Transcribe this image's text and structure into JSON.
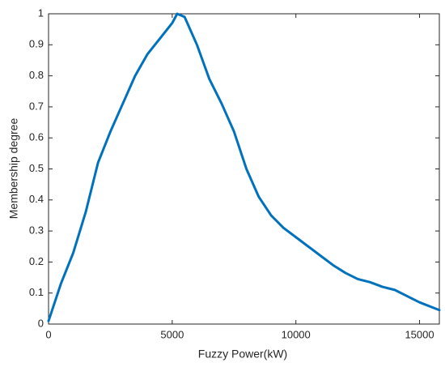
{
  "chart_data": {
    "type": "line",
    "x_label": "Fuzzy Power(kW)",
    "y_label": "Membership degree",
    "x": [
      0,
      500,
      1000,
      1500,
      2000,
      2500,
      3000,
      3500,
      4000,
      4500,
      5000,
      5200,
      5500,
      6000,
      6500,
      7000,
      7500,
      8000,
      8500,
      9000,
      9500,
      10000,
      10500,
      11000,
      11500,
      12000,
      12500,
      13000,
      13500,
      14000,
      14500,
      15000,
      15800
    ],
    "series": [
      {
        "color": "#0072bd",
        "values": [
          0.01,
          0.13,
          0.23,
          0.36,
          0.52,
          0.62,
          0.71,
          0.8,
          0.87,
          0.92,
          0.97,
          1.0,
          0.99,
          0.9,
          0.79,
          0.71,
          0.62,
          0.5,
          0.41,
          0.35,
          0.31,
          0.28,
          0.25,
          0.22,
          0.19,
          0.165,
          0.145,
          0.135,
          0.12,
          0.11,
          0.09,
          0.07,
          0.045
        ]
      }
    ],
    "xlim": [
      0,
      15800
    ],
    "ylim": [
      0,
      1
    ],
    "xticks": [
      0,
      5000,
      10000,
      15000
    ],
    "yticks": [
      0,
      0.1,
      0.2,
      0.3,
      0.4,
      0.5,
      0.6,
      0.7,
      0.8,
      0.9,
      1
    ],
    "grid": false
  }
}
